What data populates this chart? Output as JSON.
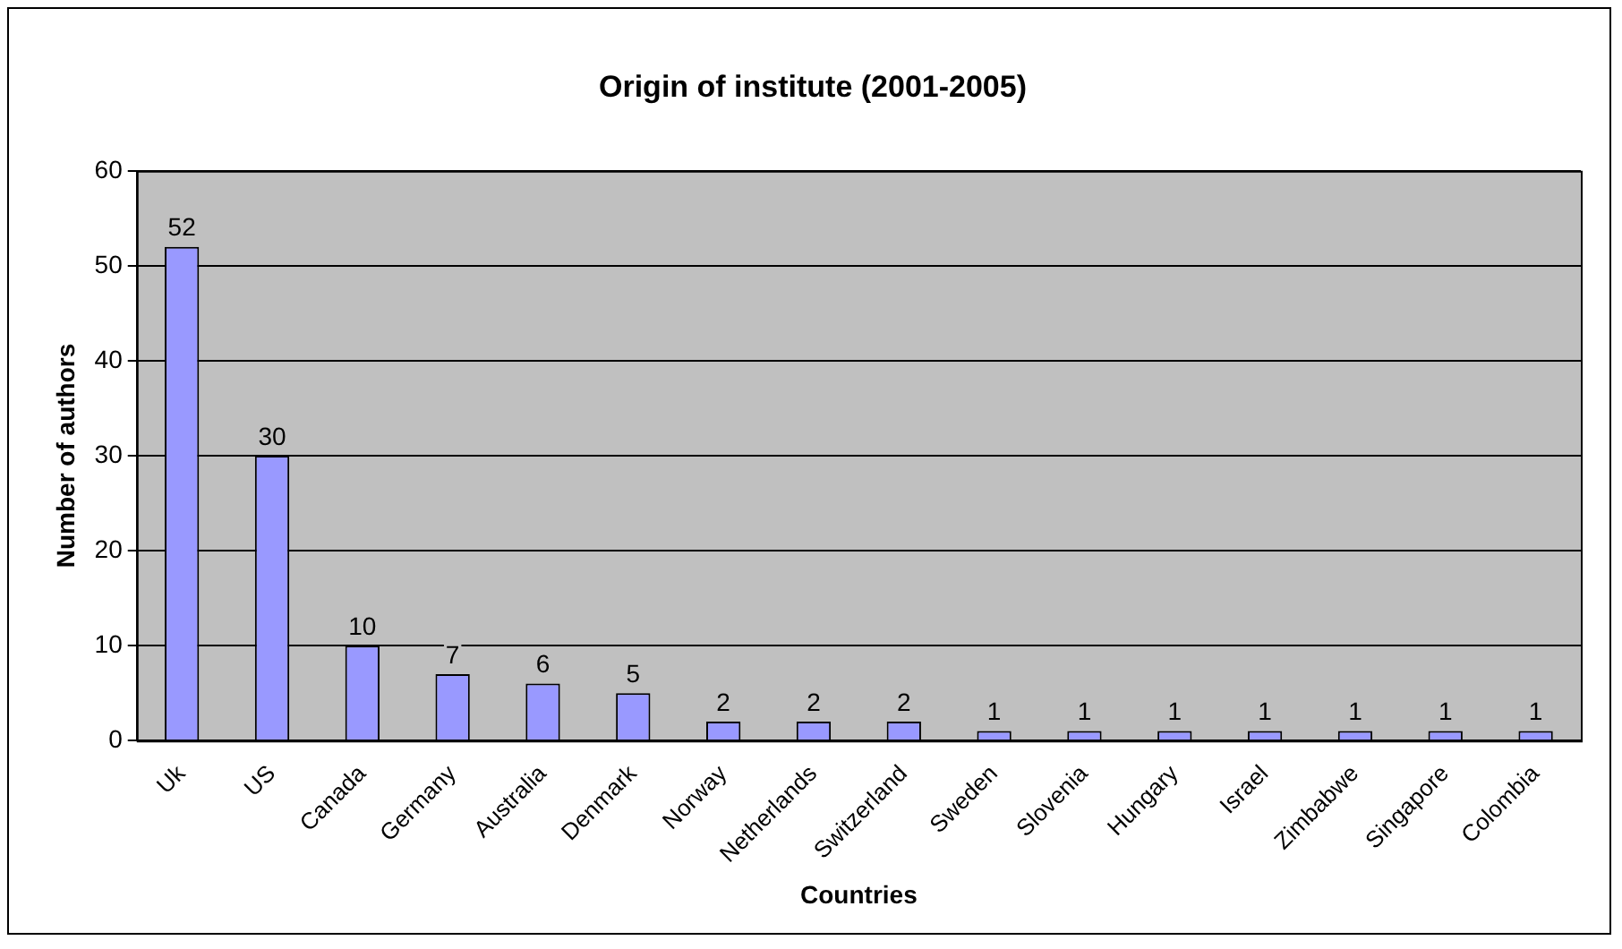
{
  "chart_data": {
    "type": "bar",
    "title": "Origin of institute (2001-2005)",
    "xlabel": "Countries",
    "ylabel": "Number of authors",
    "categories": [
      "Uk",
      "US",
      "Canada",
      "Germany",
      "Australia",
      "Denmark",
      "Norway",
      "Netherlands",
      "Switzerland",
      "Sweden",
      "Slovenia",
      "Hungary",
      "Israel",
      "Zimbabwe",
      "Singapore",
      "Colombia"
    ],
    "values": [
      52,
      30,
      10,
      7,
      6,
      5,
      2,
      2,
      2,
      1,
      1,
      1,
      1,
      1,
      1,
      1
    ],
    "color": "#9999ff",
    "ylim": [
      0,
      60
    ],
    "yticks": [
      0,
      10,
      20,
      30,
      40,
      50,
      60
    ],
    "grid": "y",
    "legend": false,
    "data_labels": true
  }
}
